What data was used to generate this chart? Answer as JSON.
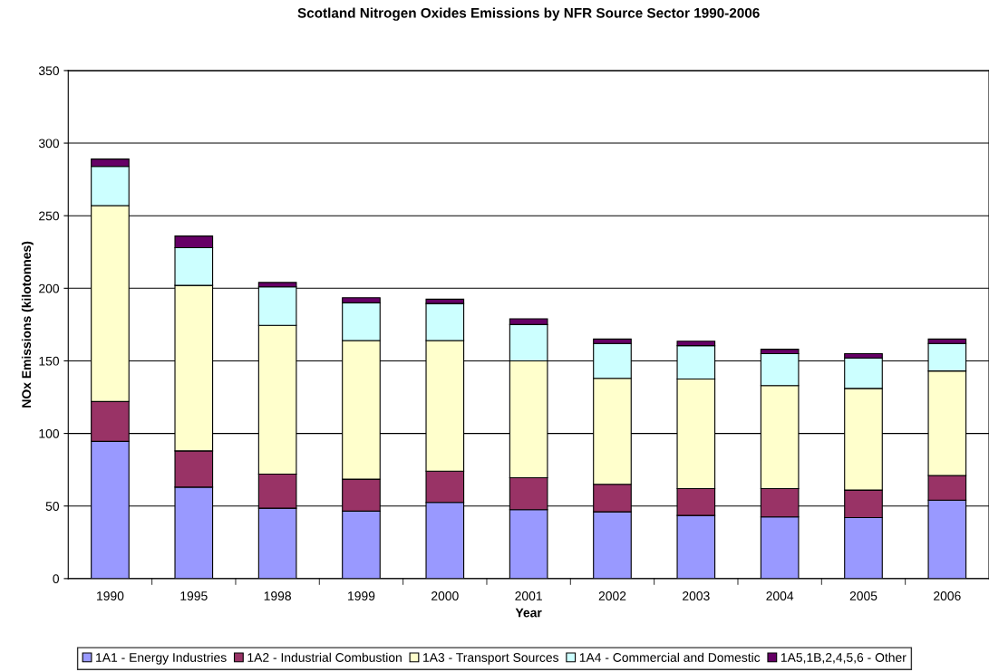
{
  "chart_data": {
    "type": "bar",
    "title": "Scotland Nitrogen Oxides Emissions by NFR Source Sector 1990-2006",
    "xlabel": "Year",
    "ylabel": "NOx Emissions (kilotonnes)",
    "categories": [
      "1990",
      "1995",
      "1998",
      "1999",
      "2000",
      "2001",
      "2002",
      "2003",
      "2004",
      "2005",
      "2006"
    ],
    "stacked": true,
    "ylim": [
      0,
      350
    ],
    "yticks": [
      0,
      50,
      100,
      150,
      200,
      250,
      300,
      350
    ],
    "grid": "y",
    "legend": "bottom",
    "series": [
      {
        "name": "1A1 - Energy Industries",
        "color": "#9999ff",
        "values": [
          94.5,
          63,
          48.5,
          46.5,
          52.5,
          47.5,
          46,
          43.5,
          42.5,
          42,
          54
        ]
      },
      {
        "name": "1A2 - Industrial Combustion",
        "color": "#993366",
        "values": [
          27.5,
          25,
          23.5,
          22,
          21.5,
          22,
          19,
          18.5,
          19.5,
          19,
          17
        ]
      },
      {
        "name": "1A3 - Transport Sources",
        "color": "#ffffcc",
        "values": [
          135,
          114,
          102.5,
          95.5,
          90,
          80.5,
          73,
          75.5,
          71,
          70,
          72
        ]
      },
      {
        "name": "1A4 - Commercial and Domestic",
        "color": "#ccffff",
        "values": [
          27,
          26,
          26.5,
          26,
          25.5,
          25,
          24,
          23,
          22,
          21,
          19
        ]
      },
      {
        "name": "1A5,1B,2,4,5,6 - Other",
        "color": "#660066",
        "values": [
          5,
          8,
          3,
          3.5,
          3,
          4,
          3,
          3,
          3,
          3,
          3
        ]
      }
    ]
  }
}
